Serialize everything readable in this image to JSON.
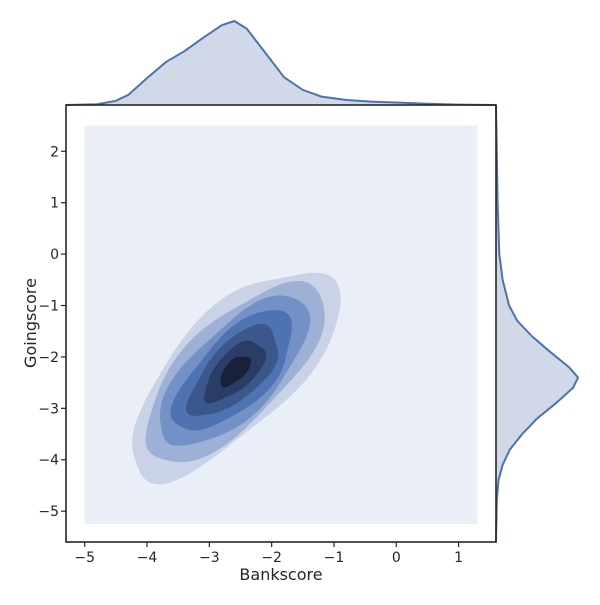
{
  "chart_data": {
    "type": "joint_kde",
    "xlabel": "Bankscore",
    "ylabel": "Goingscore",
    "xlim": [
      -5.3,
      1.6
    ],
    "ylim": [
      -5.6,
      2.9
    ],
    "kde_grid_extent": {
      "x": [
        -5.0,
        1.3
      ],
      "y": [
        -5.25,
        2.5
      ]
    },
    "x_ticks": [
      -5,
      -4,
      -3,
      -2,
      -1,
      0,
      1
    ],
    "x_tick_labels": [
      "−5",
      "−4",
      "−3",
      "−2",
      "−1",
      "0",
      "1"
    ],
    "y_ticks": [
      -5,
      -4,
      -3,
      -2,
      -1,
      0,
      1,
      2
    ],
    "y_tick_labels": [
      "−5",
      "−4",
      "−3",
      "−2",
      "−1",
      "0",
      "1",
      "2"
    ],
    "joint_density": {
      "center": [
        -2.65,
        -2.35
      ],
      "major_axis_direction": [
        0.82,
        1.0
      ],
      "sd_major": 0.95,
      "sd_minor": 0.3,
      "contour_levels": 7,
      "background_level_color": "#eaeef6"
    },
    "marginal_x": {
      "points": [
        [
          -5.3,
          0.0
        ],
        [
          -4.8,
          0.01
        ],
        [
          -4.5,
          0.05
        ],
        [
          -4.3,
          0.12
        ],
        [
          -4.0,
          0.32
        ],
        [
          -3.7,
          0.51
        ],
        [
          -3.4,
          0.64
        ],
        [
          -3.1,
          0.8
        ],
        [
          -2.8,
          0.95
        ],
        [
          -2.6,
          1.0
        ],
        [
          -2.4,
          0.91
        ],
        [
          -2.1,
          0.62
        ],
        [
          -1.8,
          0.33
        ],
        [
          -1.5,
          0.18
        ],
        [
          -1.2,
          0.1
        ],
        [
          -0.8,
          0.06
        ],
        [
          -0.4,
          0.04
        ],
        [
          0.0,
          0.03
        ],
        [
          0.5,
          0.015
        ],
        [
          1.0,
          0.005
        ],
        [
          1.6,
          0.0
        ]
      ]
    },
    "marginal_y": {
      "points": [
        [
          2.9,
          0.0
        ],
        [
          2.0,
          0.01
        ],
        [
          1.0,
          0.02
        ],
        [
          0.0,
          0.04
        ],
        [
          -0.5,
          0.08
        ],
        [
          -1.0,
          0.16
        ],
        [
          -1.3,
          0.26
        ],
        [
          -1.6,
          0.44
        ],
        [
          -1.9,
          0.66
        ],
        [
          -2.2,
          0.89
        ],
        [
          -2.4,
          1.0
        ],
        [
          -2.6,
          0.94
        ],
        [
          -2.9,
          0.73
        ],
        [
          -3.2,
          0.5
        ],
        [
          -3.5,
          0.32
        ],
        [
          -3.8,
          0.17
        ],
        [
          -4.1,
          0.08
        ],
        [
          -4.4,
          0.03
        ],
        [
          -4.8,
          0.01
        ],
        [
          -5.6,
          0.0
        ]
      ]
    },
    "colors": {
      "line": "#4c72b0",
      "fill": "#d1d9e8",
      "frame": "#262626",
      "levels": [
        "#eaeef6",
        "#c9d2e6",
        "#9db0d6",
        "#7391c6",
        "#4f72b0",
        "#3b578c",
        "#2a3d66",
        "#172238"
      ]
    }
  }
}
